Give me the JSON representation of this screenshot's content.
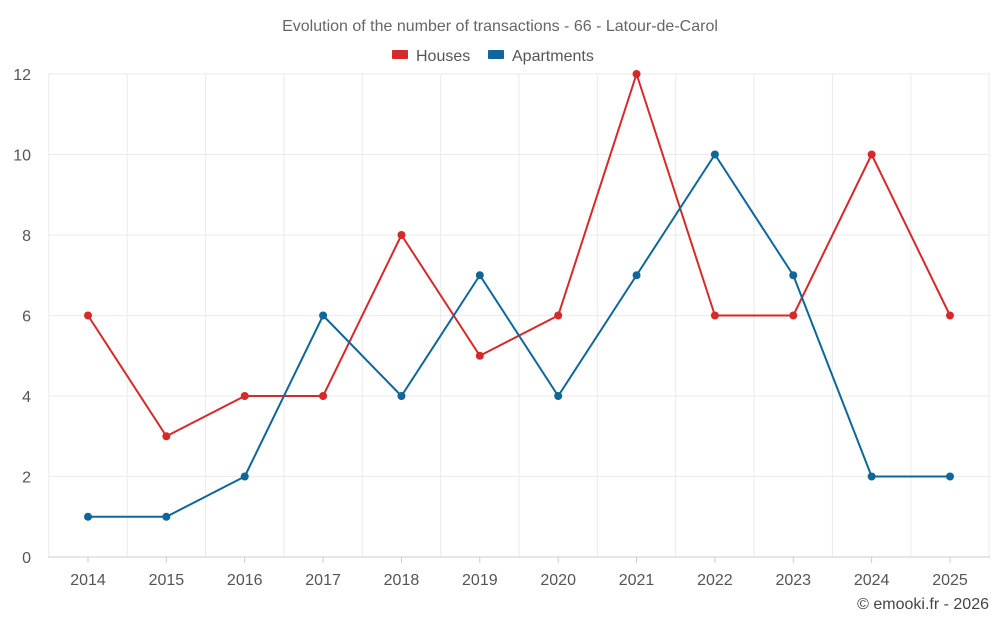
{
  "chart_data": {
    "type": "line",
    "title": "Evolution of the number of transactions - 66 - Latour-de-Carol",
    "categories": [
      "2014",
      "2015",
      "2016",
      "2017",
      "2018",
      "2019",
      "2020",
      "2021",
      "2022",
      "2023",
      "2024",
      "2025"
    ],
    "series": [
      {
        "name": "Houses",
        "color": "#d62a2a",
        "values": [
          6,
          3,
          4,
          4,
          8,
          5,
          6,
          12,
          6,
          6,
          10,
          6
        ]
      },
      {
        "name": "Apartments",
        "color": "#0e6699",
        "values": [
          1,
          1,
          2,
          6,
          4,
          7,
          4,
          7,
          10,
          7,
          2,
          2
        ]
      }
    ],
    "ylim": [
      0,
      12
    ],
    "yticks": [
      0,
      2,
      4,
      6,
      8,
      10,
      12
    ],
    "xlabel": "",
    "ylabel": "",
    "grid": true,
    "legend": "top-center"
  },
  "credit": "© emooki.fr - 2026"
}
